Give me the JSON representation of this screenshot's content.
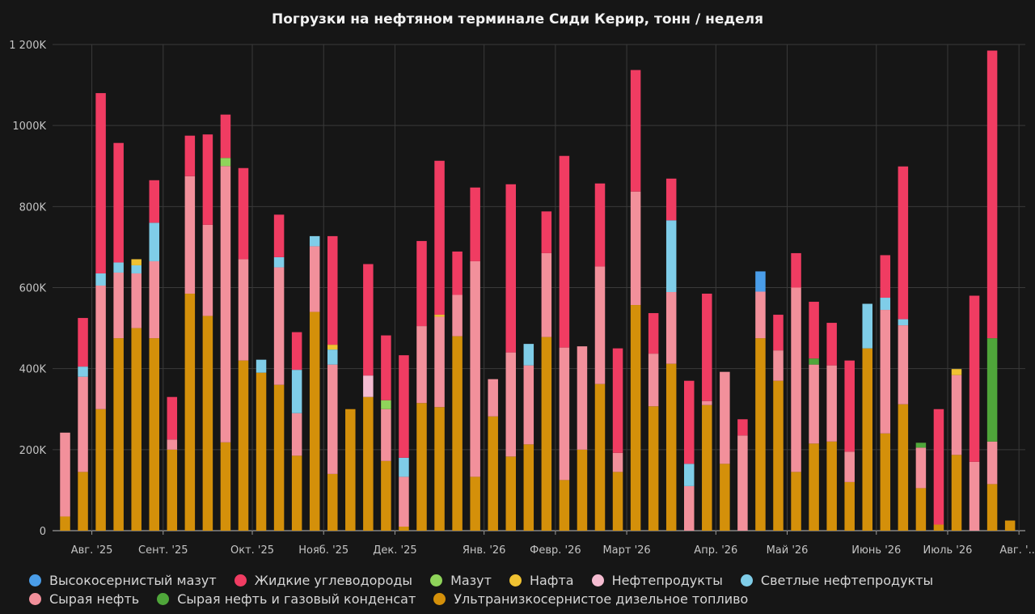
{
  "chart_data": {
    "type": "bar",
    "stacked": true,
    "title": "Погрузки на нефтяном терминале Сиди Керир, тонн / неделя",
    "xlabel": "",
    "ylabel": "",
    "ylim": [
      0,
      1200000
    ],
    "y_ticks": [
      0,
      200000,
      400000,
      600000,
      800000,
      1000000,
      1200000
    ],
    "y_tick_labels": [
      "0",
      "200K",
      "400K",
      "600K",
      "800K",
      "1000K",
      "1 200K"
    ],
    "grid": true,
    "legend_position": "bottom",
    "x_tick_labels": [
      {
        "label": "Авг. '25",
        "after_bar": 1
      },
      {
        "label": "Сент. '25",
        "after_bar": 5
      },
      {
        "label": "Окт. '25",
        "after_bar": 10
      },
      {
        "label": "Нояб. '25",
        "after_bar": 14
      },
      {
        "label": "Дек. '25",
        "after_bar": 18
      },
      {
        "label": "Янв. '26",
        "after_bar": 23
      },
      {
        "label": "Февр. '26",
        "after_bar": 27
      },
      {
        "label": "Март '26",
        "after_bar": 31
      },
      {
        "label": "Апр. '26",
        "after_bar": 36
      },
      {
        "label": "Май '26",
        "after_bar": 40
      },
      {
        "label": "Июнь '26",
        "after_bar": 45
      },
      {
        "label": "Июль '26",
        "after_bar": 49
      },
      {
        "label": "Авг. '...",
        "after_bar": 53
      }
    ],
    "series": [
      {
        "name": "Ультранизкосернистое дизельное топливо",
        "color": "#d4900a",
        "values": [
          35000,
          145000,
          300000,
          475000,
          500000,
          475000,
          200000,
          585000,
          530000,
          218000,
          420000,
          390000,
          360000,
          185000,
          540000,
          140000,
          300000,
          330000,
          172000,
          10000,
          315000,
          305000,
          480000,
          133000,
          282000,
          183000,
          213000,
          478000,
          125000,
          200000,
          362000,
          145000,
          557000,
          307000,
          412000,
          0,
          310000,
          165000,
          0,
          475000,
          370000,
          145000,
          215000,
          220000,
          120000,
          450000,
          240000,
          312000,
          105000,
          15000,
          187000,
          0,
          115000,
          25000
        ]
      },
      {
        "name": "Сырая нефть",
        "color": "#f2909b",
        "values": [
          207000,
          235000,
          305000,
          162000,
          135000,
          190000,
          25000,
          290000,
          225000,
          682000,
          250000,
          0,
          290000,
          105000,
          162000,
          270000,
          0,
          0,
          128000,
          123000,
          190000,
          223000,
          102000,
          532000,
          92000,
          257000,
          195000,
          207000,
          327000,
          255000,
          290000,
          47000,
          280000,
          130000,
          177000,
          110000,
          10000,
          227000,
          235000,
          115000,
          75000,
          455000,
          195000,
          188000,
          75000,
          0,
          305000,
          195000,
          100000,
          0,
          197000,
          170000,
          105000,
          0
        ]
      },
      {
        "name": "Светлые нефтепродукты",
        "color": "#7fcde8",
        "values": [
          0,
          25000,
          30000,
          25000,
          20000,
          95000,
          0,
          0,
          0,
          0,
          0,
          32000,
          25000,
          107000,
          25000,
          37000,
          0,
          0,
          0,
          47000,
          0,
          0,
          0,
          0,
          0,
          0,
          53000,
          0,
          0,
          0,
          0,
          0,
          0,
          0,
          177000,
          55000,
          0,
          0,
          0,
          0,
          0,
          0,
          0,
          0,
          0,
          110000,
          30000,
          15000,
          0,
          0,
          0,
          0,
          0,
          0
        ]
      },
      {
        "name": "Нефтепродукты",
        "color": "#f5bcd1",
        "values": [
          0,
          0,
          0,
          0,
          0,
          0,
          0,
          0,
          0,
          0,
          0,
          0,
          0,
          0,
          0,
          0,
          0,
          53000,
          0,
          0,
          0,
          0,
          0,
          0,
          0,
          0,
          0,
          0,
          0,
          0,
          0,
          0,
          0,
          0,
          0,
          0,
          0,
          0,
          0,
          0,
          0,
          0,
          0,
          0,
          0,
          0,
          0,
          0,
          0,
          0,
          0,
          0,
          0,
          0
        ]
      },
      {
        "name": "Нафта",
        "color": "#f0c232",
        "values": [
          0,
          0,
          0,
          0,
          15000,
          0,
          0,
          0,
          0,
          0,
          0,
          0,
          0,
          0,
          0,
          12000,
          0,
          0,
          0,
          0,
          0,
          5000,
          0,
          0,
          0,
          0,
          0,
          0,
          0,
          0,
          0,
          0,
          0,
          0,
          0,
          0,
          0,
          0,
          0,
          0,
          0,
          0,
          0,
          0,
          0,
          0,
          0,
          0,
          0,
          0,
          15000,
          0,
          0,
          0
        ]
      },
      {
        "name": "Мазут",
        "color": "#8fd45a",
        "values": [
          0,
          0,
          0,
          0,
          0,
          0,
          0,
          0,
          0,
          20000,
          0,
          0,
          0,
          0,
          0,
          0,
          0,
          0,
          22000,
          0,
          0,
          0,
          0,
          0,
          0,
          0,
          0,
          0,
          0,
          0,
          0,
          0,
          0,
          0,
          0,
          0,
          0,
          0,
          0,
          0,
          0,
          0,
          0,
          0,
          0,
          0,
          0,
          0,
          0,
          0,
          0,
          0,
          0,
          0
        ]
      },
      {
        "name": "Сырая нефть и газовый конденсат",
        "color": "#4fa63a",
        "values": [
          0,
          0,
          0,
          0,
          0,
          0,
          0,
          0,
          0,
          0,
          0,
          0,
          0,
          0,
          0,
          0,
          0,
          0,
          0,
          0,
          0,
          0,
          0,
          0,
          0,
          0,
          0,
          0,
          0,
          0,
          0,
          0,
          0,
          0,
          0,
          0,
          0,
          0,
          0,
          0,
          0,
          0,
          15000,
          0,
          0,
          0,
          0,
          0,
          12000,
          0,
          0,
          0,
          255000,
          0
        ]
      },
      {
        "name": "Высокосернистый мазут",
        "color": "#4a9de8",
        "values": [
          0,
          0,
          0,
          0,
          0,
          0,
          0,
          0,
          0,
          0,
          0,
          0,
          0,
          0,
          0,
          0,
          0,
          0,
          0,
          0,
          0,
          0,
          0,
          0,
          0,
          0,
          0,
          0,
          0,
          0,
          0,
          0,
          0,
          0,
          0,
          0,
          0,
          0,
          0,
          50000,
          0,
          0,
          0,
          0,
          0,
          0,
          0,
          0,
          0,
          0,
          0,
          0,
          0,
          0
        ]
      },
      {
        "name": "Жидкие углеводороды",
        "color": "#f03c62",
        "values": [
          0,
          120000,
          445000,
          295000,
          0,
          105000,
          105000,
          100000,
          223000,
          107000,
          225000,
          0,
          105000,
          93000,
          0,
          268000,
          0,
          275000,
          160000,
          253000,
          210000,
          380000,
          107000,
          182000,
          0,
          415000,
          0,
          103000,
          473000,
          0,
          205000,
          258000,
          300000,
          100000,
          103000,
          205000,
          265000,
          0,
          40000,
          0,
          88000,
          85000,
          140000,
          105000,
          225000,
          0,
          105000,
          377000,
          0,
          285000,
          0,
          410000,
          710000,
          0
        ]
      }
    ]
  },
  "legend": [
    {
      "label": "Высокосернистый мазут",
      "color": "#4a9de8"
    },
    {
      "label": "Жидкие углеводороды",
      "color": "#f03c62"
    },
    {
      "label": "Мазут",
      "color": "#8fd45a"
    },
    {
      "label": "Нафта",
      "color": "#f0c232"
    },
    {
      "label": "Нефтепродукты",
      "color": "#f5bcd1"
    },
    {
      "label": "Светлые нефтепродукты",
      "color": "#7fcde8"
    },
    {
      "label": "Сырая нефть",
      "color": "#f2909b"
    },
    {
      "label": "Сырая нефть и газовый конденсат",
      "color": "#4fa63a"
    },
    {
      "label": "Ультранизкосернистое дизельное топливо",
      "color": "#d4900a"
    }
  ],
  "colors": {
    "background": "#161616",
    "grid": "#3a3a3a",
    "axis": "#9a9a9a",
    "text": "#c4c4c4"
  }
}
